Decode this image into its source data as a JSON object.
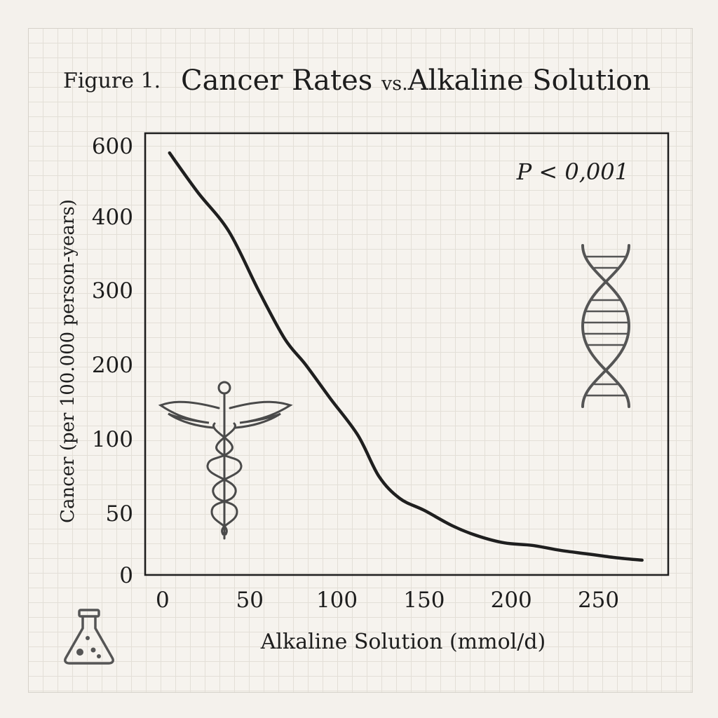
{
  "figure": {
    "label": "Figure 1.",
    "title_main": "Cancer Rates",
    "title_vs": "vs.",
    "title_end": "Alkaline Solution"
  },
  "chart_data": {
    "type": "line",
    "title": "Cancer Rates vs. Alkaline Solution",
    "xlabel": "Alkaline Solution (mmol/d)",
    "ylabel": "Cancer (per 100.000 person-years)",
    "annotation": "P < 0,001",
    "xlim": [
      -10,
      290
    ],
    "x_ticks": [
      0,
      50,
      100,
      150,
      200,
      250
    ],
    "y_ticks": [
      0,
      50,
      100,
      200,
      300,
      400,
      600
    ],
    "series": [
      {
        "x": [
          4,
          20,
          38,
          55,
          70,
          82,
          96,
          112,
          124,
          136,
          150,
          166,
          180,
          196,
          212,
          228,
          244,
          260,
          275
        ],
        "y": [
          580,
          470,
          380,
          300,
          235,
          200,
          155,
          105,
          75,
          60,
          52,
          40,
          32,
          26,
          24,
          20,
          17,
          14,
          12
        ],
        "color": "#1f1f1f"
      }
    ],
    "grid": true,
    "legend": "none"
  },
  "icons": [
    "caduceus-icon",
    "dna-icon",
    "flask-icon"
  ]
}
